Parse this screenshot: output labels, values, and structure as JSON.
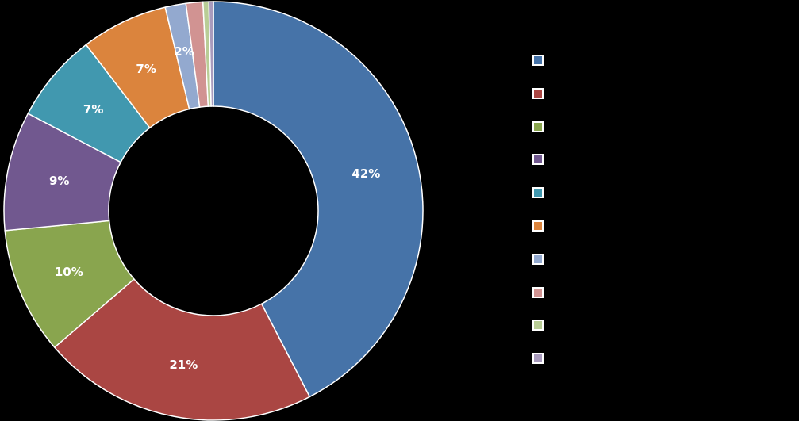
{
  "chart_data": {
    "type": "pie",
    "variant": "donut",
    "title": "",
    "categories": [
      "",
      "",
      "",
      "",
      "",
      "",
      "",
      "",
      "",
      ""
    ],
    "values": [
      42.4,
      21.3,
      9.8,
      9.2,
      6.9,
      6.7,
      1.6,
      1.3,
      0.45,
      0.35
    ],
    "data_labels": [
      "42%",
      "21%",
      "10%",
      "9%",
      "7%",
      "7%",
      "2%",
      "",
      "",
      ""
    ],
    "colors": [
      "#4673A8",
      "#AA4643",
      "#89A54E",
      "#71588F",
      "#4198AF",
      "#DB843D",
      "#93A9CF",
      "#D19392",
      "#B9CD96",
      "#A99BBD"
    ],
    "start_angle_deg": 0,
    "direction": "clockwise",
    "legend_position": "right",
    "background": "#000000"
  },
  "legend": {
    "items": [
      {
        "label": "",
        "color": "#4673A8"
      },
      {
        "label": "",
        "color": "#AA4643"
      },
      {
        "label": "",
        "color": "#89A54E"
      },
      {
        "label": "",
        "color": "#71588F"
      },
      {
        "label": "",
        "color": "#4198AF"
      },
      {
        "label": "",
        "color": "#DB843D"
      },
      {
        "label": "",
        "color": "#93A9CF"
      },
      {
        "label": "",
        "color": "#D19392"
      },
      {
        "label": "",
        "color": "#B9CD96"
      },
      {
        "label": "",
        "color": "#A99BBD"
      }
    ]
  }
}
